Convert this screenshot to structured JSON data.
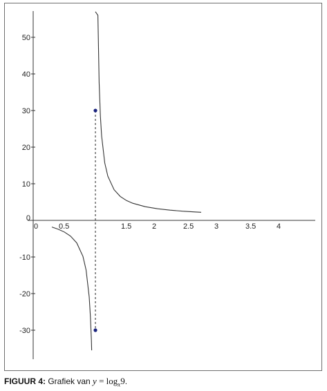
{
  "chart_data": {
    "type": "line",
    "function": "y = log_x 9",
    "x_ticks": [
      "0",
      "0.5",
      "1.5",
      "2",
      "2.5",
      "3",
      "3.5",
      "4"
    ],
    "y_ticks": [
      "50",
      "40",
      "30",
      "20",
      "10",
      "0",
      "-10",
      "-20",
      "-30"
    ],
    "xlim": [
      0,
      4.5
    ],
    "ylim": [
      -38,
      57
    ],
    "vertical_asymptote_x": 1,
    "series": [
      {
        "x": [
          0.3,
          0.4,
          0.5,
          0.6,
          0.7,
          0.8,
          0.85,
          0.9,
          0.92,
          0.935,
          0.94
        ],
        "y": [
          -1.82,
          -2.4,
          -3.17,
          -4.3,
          -6.16,
          -9.85,
          -13.52,
          -20.85,
          -26.35,
          -32.7,
          -35.5
        ]
      },
      {
        "x": [
          1.0,
          1.04,
          1.06,
          1.08,
          1.1,
          1.15,
          1.2,
          1.3,
          1.4,
          1.5,
          1.6,
          1.8,
          2.0,
          2.2,
          2.4,
          2.6,
          2.7
        ],
        "y": [
          57,
          56.0,
          37.7,
          28.5,
          23.05,
          15.72,
          12.05,
          8.37,
          6.53,
          5.42,
          4.67,
          3.74,
          3.17,
          2.79,
          2.51,
          2.3,
          2.21
        ]
      }
    ],
    "highlighted_points": [
      {
        "x": 1,
        "y": 30
      },
      {
        "x": 1,
        "y": -30
      }
    ],
    "grid": false
  },
  "caption": {
    "label": "FIGUUR 4:",
    "text": "Grafiek van",
    "math_var": "y",
    "math_eq": "=",
    "math_log": "log",
    "math_base": "x",
    "math_arg": "9",
    "end": "."
  },
  "colors": {
    "curve": "#333333",
    "axis": "#333333",
    "point": "#1a237e",
    "frame": "#6f6f6f"
  }
}
